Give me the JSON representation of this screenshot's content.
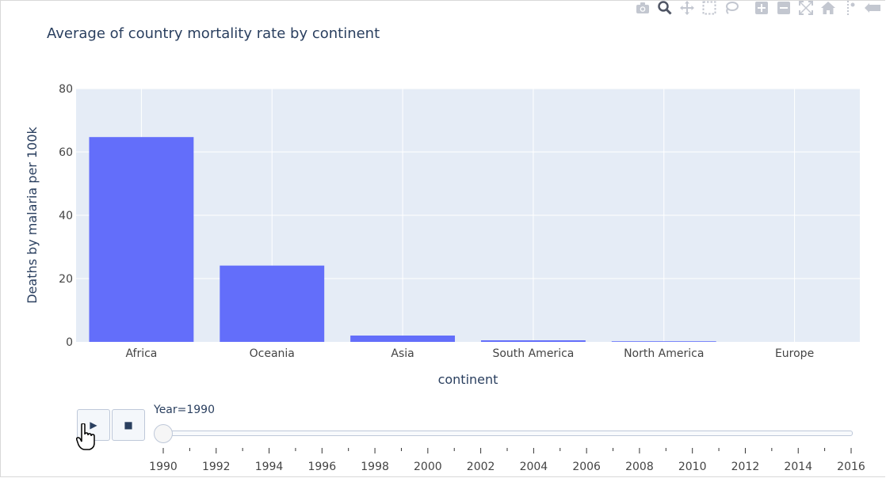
{
  "title": "Average of country mortality rate by continent",
  "colors": {
    "bar": "#636efa",
    "plot_bg": "#e5ecf6",
    "grid": "#ffffff",
    "text": "#2a3f5f"
  },
  "modebar": {
    "icons": [
      "camera-icon",
      "zoom-icon",
      "pan-icon",
      "box-select-icon",
      "lasso-icon",
      "zoom-in-icon",
      "zoom-out-icon",
      "autoscale-icon",
      "home-icon",
      "spike-lines-icon",
      "hover-compare-icon"
    ]
  },
  "chart_data": {
    "type": "bar",
    "title": "Average of country mortality rate by continent",
    "xlabel": "continent",
    "ylabel": "Deaths by malaria per 100k",
    "categories": [
      "Africa",
      "Oceania",
      "Asia",
      "South America",
      "North America",
      "Europe"
    ],
    "values": [
      64.7,
      24.1,
      2.0,
      0.5,
      0.2,
      0.0
    ],
    "ylim": [
      0,
      80
    ],
    "yticks": [
      "0",
      "20",
      "40",
      "60",
      "80"
    ],
    "grid": true,
    "legend": "none"
  },
  "slider": {
    "label": "Year=1990",
    "value": 1990,
    "min": 1990,
    "max": 2016,
    "tick_labels": [
      "1990",
      "1992",
      "1994",
      "1996",
      "1998",
      "2000",
      "2002",
      "2004",
      "2006",
      "2008",
      "2010",
      "2012",
      "2014",
      "2016"
    ]
  },
  "player": {
    "play_symbol": "▶",
    "stop_symbol": "■"
  }
}
